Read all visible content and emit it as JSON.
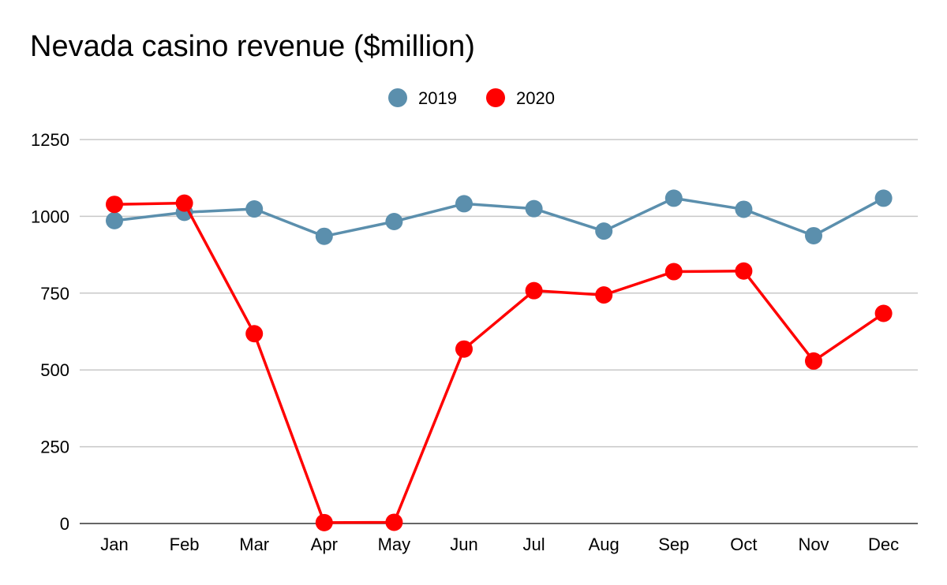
{
  "chart_data": {
    "type": "line",
    "title": "Nevada casino revenue ($million)",
    "xlabel": "",
    "ylabel": "",
    "categories": [
      "Jan",
      "Feb",
      "Mar",
      "Apr",
      "May",
      "Jun",
      "Jul",
      "Aug",
      "Sep",
      "Oct",
      "Nov",
      "Dec"
    ],
    "yticks": [
      0,
      250,
      500,
      750,
      1000,
      1250
    ],
    "ylim": [
      0,
      1250
    ],
    "grid": true,
    "legend_position": "top-center",
    "series": [
      {
        "name": "2019",
        "color": "#5b8fad",
        "values": [
          986,
          1013,
          1024,
          935,
          983,
          1041,
          1025,
          952,
          1059,
          1023,
          937,
          1059
        ]
      },
      {
        "name": "2020",
        "color": "#ff0000",
        "values": [
          1039,
          1043,
          618,
          3,
          4,
          568,
          758,
          744,
          820,
          822,
          529,
          684
        ]
      }
    ]
  }
}
